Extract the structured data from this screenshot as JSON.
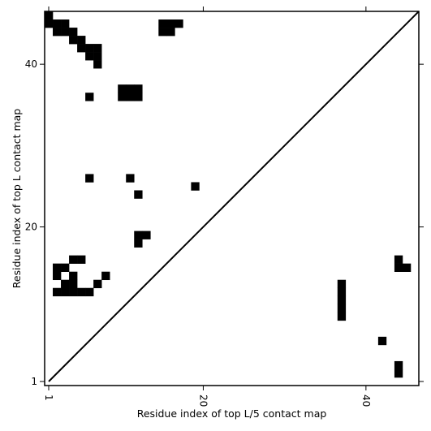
{
  "chart_data": {
    "type": "heatmap",
    "title": "",
    "xlabel": "Residue index of top L/5 contact map",
    "ylabel": "Residue index of top L contact map",
    "xlim": [
      0.5,
      46.5
    ],
    "ylim": [
      0.5,
      46.5
    ],
    "x_ticks": [
      1,
      20,
      40
    ],
    "y_ticks": [
      1,
      20,
      40
    ],
    "x_tick_rotation": "rotated-clockwise",
    "diagonal": true,
    "colors": {
      "contact": "#000000",
      "background": "#ffffff",
      "axes": "#000000"
    },
    "contacts": [
      [
        1,
        46
      ],
      [
        1,
        45
      ],
      [
        2,
        45
      ],
      [
        3,
        45
      ],
      [
        2,
        44
      ],
      [
        3,
        44
      ],
      [
        4,
        44
      ],
      [
        4,
        43
      ],
      [
        5,
        43
      ],
      [
        5,
        42
      ],
      [
        6,
        42
      ],
      [
        7,
        42
      ],
      [
        6,
        41
      ],
      [
        7,
        41
      ],
      [
        7,
        40
      ],
      [
        15,
        45
      ],
      [
        15,
        44
      ],
      [
        16,
        45
      ],
      [
        16,
        44
      ],
      [
        17,
        45
      ],
      [
        10,
        37
      ],
      [
        11,
        37
      ],
      [
        12,
        37
      ],
      [
        10,
        36
      ],
      [
        11,
        36
      ],
      [
        12,
        36
      ],
      [
        6,
        36
      ],
      [
        6,
        26
      ],
      [
        11,
        26
      ],
      [
        12,
        24
      ],
      [
        19,
        25
      ],
      [
        12,
        19
      ],
      [
        12,
        18
      ],
      [
        13,
        19
      ],
      [
        4,
        16
      ],
      [
        5,
        16
      ],
      [
        2,
        15
      ],
      [
        3,
        15
      ],
      [
        2,
        14
      ],
      [
        8,
        14
      ],
      [
        4,
        13
      ],
      [
        7,
        13
      ],
      [
        2,
        12
      ],
      [
        3,
        12
      ],
      [
        4,
        12
      ],
      [
        5,
        12
      ],
      [
        6,
        12
      ],
      [
        3,
        13
      ],
      [
        4,
        14
      ],
      [
        37,
        13
      ],
      [
        37,
        12
      ],
      [
        37,
        11
      ],
      [
        37,
        10
      ],
      [
        37,
        9
      ],
      [
        44,
        16
      ],
      [
        44,
        15
      ],
      [
        45,
        15
      ],
      [
        42,
        6
      ],
      [
        44,
        3
      ],
      [
        44,
        2
      ]
    ]
  }
}
